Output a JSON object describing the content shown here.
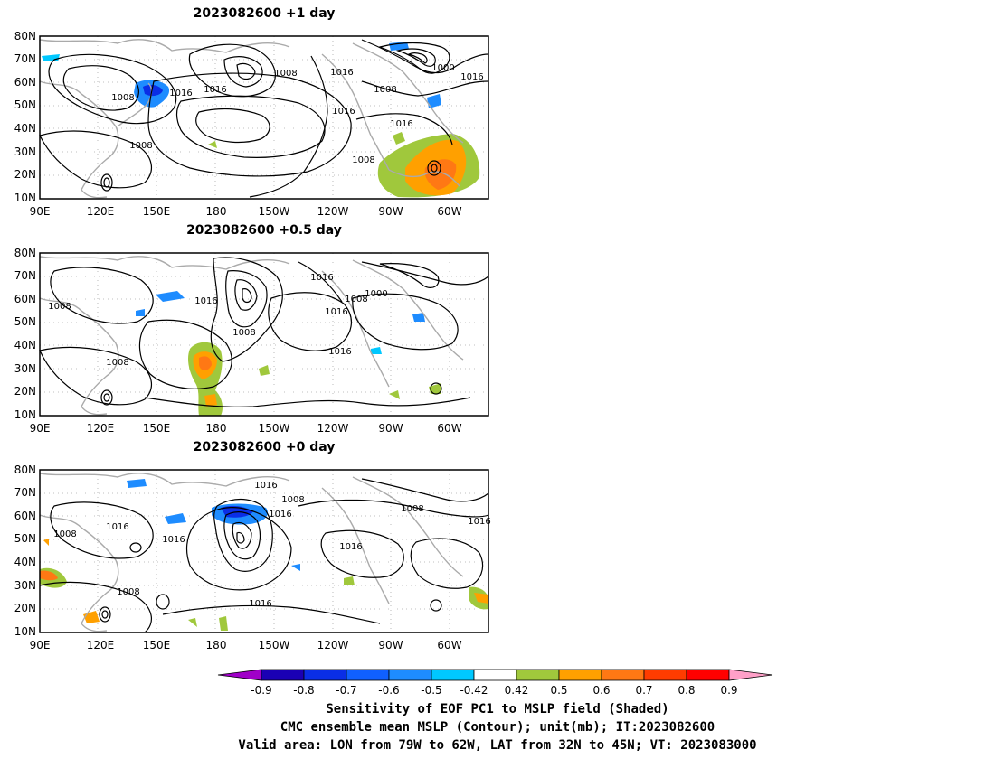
{
  "panels": [
    {
      "title": "2023082600  +1  day",
      "contour_labels": [
        "1008",
        "1016",
        "1016",
        "1008",
        "1016",
        "1000",
        "1016",
        "1008",
        "1016",
        "1016",
        "1008",
        "1008"
      ]
    },
    {
      "title": "2023082600  +0.5  day",
      "contour_labels": [
        "1016",
        "1008",
        "1016",
        "1008",
        "1000",
        "1016",
        "1008",
        "1016",
        "1008"
      ]
    },
    {
      "title": "2023082600  +0",
      "title_unit": "day",
      "contour_labels": [
        "1016",
        "1008",
        "1008",
        "1016",
        "1016",
        "1016",
        "1008",
        "1016",
        "1016",
        "1008",
        "1016"
      ]
    }
  ],
  "axes": {
    "y_ticks": [
      "80N",
      "70N",
      "60N",
      "50N",
      "40N",
      "30N",
      "20N",
      "10N"
    ],
    "x_ticks": [
      "90E",
      "120E",
      "150E",
      "180",
      "150W",
      "120W",
      "90W",
      "60W"
    ]
  },
  "colorbar": {
    "ticks": [
      "-0.9",
      "-0.8",
      "-0.7",
      "-0.6",
      "-0.5",
      "-0.42",
      "0.42",
      "0.5",
      "0.6",
      "0.7",
      "0.8",
      "0.9"
    ],
    "colors": [
      "#a000c8",
      "#1a00b4",
      "#0a2ee6",
      "#1060ff",
      "#1e8cff",
      "#00c8ff",
      "#ffffff",
      "#a0c83c",
      "#ffa000",
      "#ff7814",
      "#ff3c00",
      "#ff0000",
      "#ffa0c8"
    ]
  },
  "captions": [
    "Sensitivity of EOF PC1 to MSLP field (Shaded)",
    "CMC ensemble mean MSLP (Contour); unit(mb); IT:2023082600",
    "Valid area: LON from 79W to 62W, LAT from 32N to 45N; VT: 2023083000"
  ]
}
